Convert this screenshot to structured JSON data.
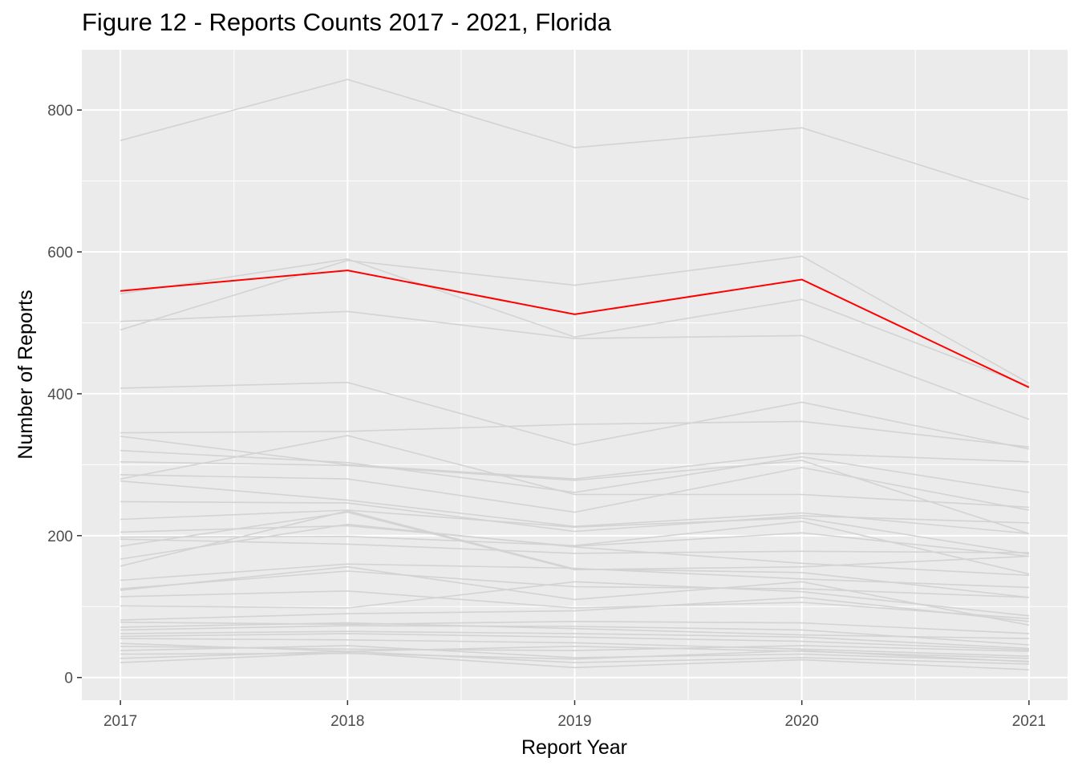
{
  "colors": {
    "panel_background": "#EBEBEB",
    "gridline": "#FFFFFF",
    "background_series": "#D3D3D3",
    "highlight_series": "#FF0000"
  },
  "chart_data": {
    "type": "line",
    "title": "Figure 12 - Reports Counts 2017 - 2021, Florida",
    "xlabel": "Report Year",
    "ylabel": "Number of Reports",
    "x": [
      2017,
      2018,
      2019,
      2020,
      2021
    ],
    "x_tick_labels": [
      "2017",
      "2018",
      "2019",
      "2020",
      "2021"
    ],
    "y_ticks": [
      0,
      200,
      400,
      600,
      800
    ],
    "y_tick_labels": [
      "0",
      "200",
      "400",
      "600",
      "800"
    ],
    "xlim": [
      2016.83,
      2021.17
    ],
    "ylim": [
      -32,
      885
    ],
    "grid": true,
    "legend": "none",
    "highlight": {
      "values": [
        545,
        574,
        512,
        561,
        409
      ]
    },
    "series": [
      {
        "values": [
          757,
          843,
          747,
          775,
          674
        ]
      },
      {
        "values": [
          541,
          590,
          480,
          533,
          411
        ]
      },
      {
        "values": [
          490,
          588,
          553,
          594,
          415
        ]
      },
      {
        "values": [
          502,
          516,
          478,
          482,
          364
        ]
      },
      {
        "values": [
          408,
          416,
          328,
          388,
          322
        ]
      },
      {
        "values": [
          345,
          347,
          357,
          361,
          325
        ]
      },
      {
        "values": [
          340,
          300,
          280,
          316,
          304
        ]
      },
      {
        "values": [
          320,
          303,
          261,
          311,
          261
        ]
      },
      {
        "values": [
          304,
          299,
          278,
          306,
          203
        ]
      },
      {
        "values": [
          286,
          280,
          233,
          296,
          236
        ]
      },
      {
        "values": [
          280,
          341,
          258,
          258,
          240
        ]
      },
      {
        "values": [
          277,
          250,
          213,
          232,
          203
        ]
      },
      {
        "values": [
          248,
          246,
          206,
          228,
          218
        ]
      },
      {
        "values": [
          223,
          236,
          212,
          225,
          174
        ]
      },
      {
        "values": [
          205,
          214,
          185,
          204,
          171
        ]
      },
      {
        "values": [
          198,
          199,
          186,
          220,
          146
        ]
      },
      {
        "values": [
          195,
          188,
          175,
          178,
          176
        ]
      },
      {
        "values": [
          185,
          233,
          152,
          156,
          171
        ]
      },
      {
        "values": [
          167,
          216,
          184,
          161,
          144
        ]
      },
      {
        "values": [
          157,
          235,
          153,
          148,
          113
        ]
      },
      {
        "values": [
          137,
          160,
          154,
          139,
          127
        ]
      },
      {
        "values": [
          125,
          150,
          128,
          125,
          113
        ]
      },
      {
        "values": [
          123,
          156,
          110,
          135,
          74
        ]
      },
      {
        "values": [
          114,
          122,
          98,
          106,
          83
        ]
      },
      {
        "values": [
          101,
          98,
          135,
          121,
          87
        ]
      },
      {
        "values": [
          81,
          90,
          94,
          113,
          79
        ]
      },
      {
        "values": [
          78,
          75,
          79,
          77,
          62
        ]
      },
      {
        "values": [
          71,
          77,
          69,
          60,
          55
        ]
      },
      {
        "values": [
          67,
          73,
          72,
          67,
          46
        ]
      },
      {
        "values": [
          62,
          65,
          62,
          57,
          41
        ]
      },
      {
        "values": [
          58,
          62,
          57,
          51,
          39
        ]
      },
      {
        "values": [
          55,
          53,
          49,
          40,
          30
        ]
      },
      {
        "values": [
          48,
          37,
          44,
          37,
          27
        ]
      },
      {
        "values": [
          44,
          40,
          38,
          45,
          37
        ]
      },
      {
        "values": [
          38,
          45,
          28,
          33,
          23
        ]
      },
      {
        "values": [
          33,
          34,
          26,
          38,
          22
        ]
      },
      {
        "values": [
          27,
          37,
          21,
          28,
          19
        ]
      },
      {
        "values": [
          21,
          35,
          14,
          25,
          11
        ]
      }
    ]
  }
}
